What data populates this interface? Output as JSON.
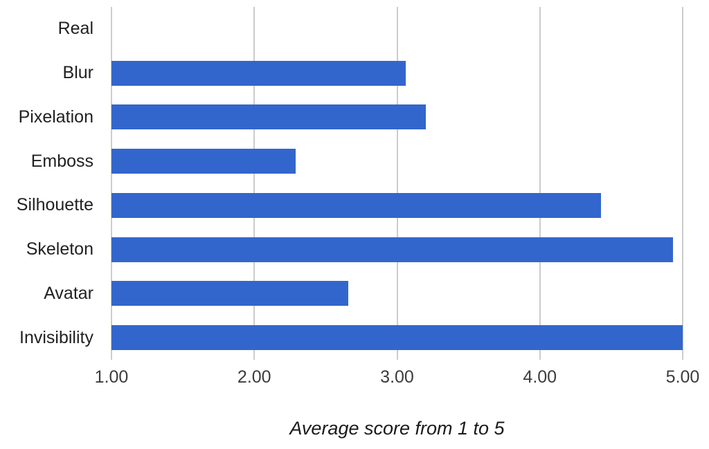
{
  "chart_data": {
    "type": "bar",
    "orientation": "horizontal",
    "categories": [
      "Real",
      "Blur",
      "Pixelation",
      "Emboss",
      "Silhouette",
      "Skeleton",
      "Avatar",
      "Invisibility"
    ],
    "values": [
      1.0,
      3.06,
      3.2,
      2.29,
      4.43,
      4.93,
      2.66,
      5.0
    ],
    "title": "",
    "xlabel": "Average score from 1 to 5",
    "ylabel": "",
    "xlim": [
      1,
      5
    ],
    "x_ticks": [
      "1.00",
      "2.00",
      "3.00",
      "4.00",
      "5.00"
    ],
    "x_tick_values": [
      1,
      2,
      3,
      4,
      5
    ],
    "grid": true,
    "legend": "none",
    "colors": {
      "bar": "#3366cc",
      "gridline": "#cccccc",
      "category_label": "#212121",
      "tick_label": "#3c3c3c",
      "axis_title": "#1a1a1a",
      "background": "#ffffff"
    }
  }
}
